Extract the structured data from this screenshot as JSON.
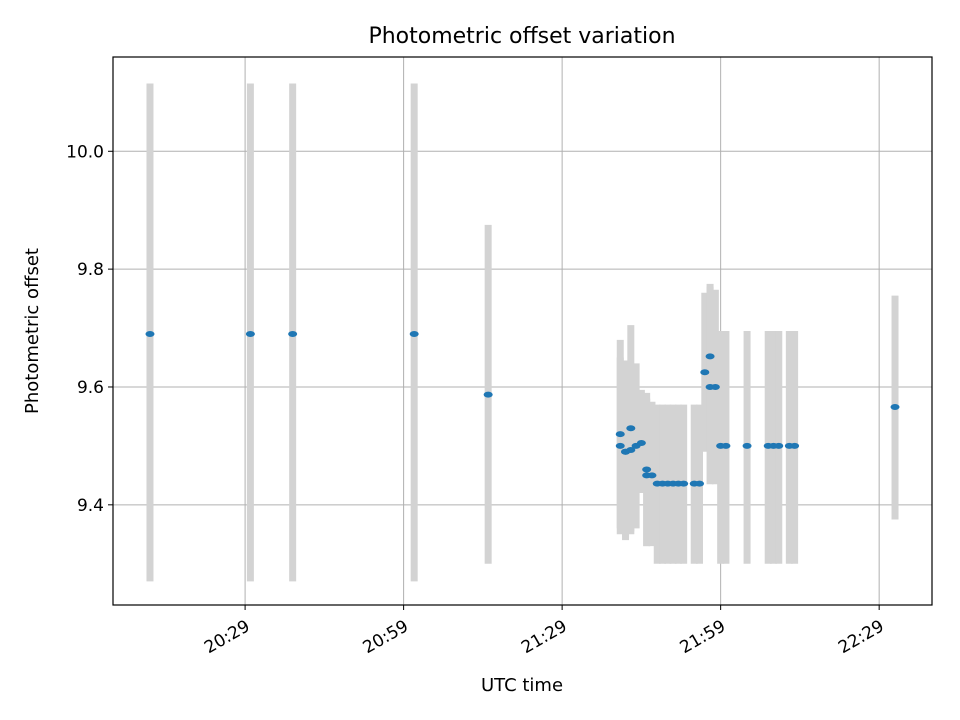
{
  "chart_data": {
    "type": "scatter",
    "title": "Photometric offset variation",
    "xlabel": "UTC time",
    "ylabel": "Photometric offset",
    "grid": true,
    "x_ticks": [
      "20:29",
      "20:59",
      "21:29",
      "21:59",
      "22:29"
    ],
    "y_ticks": [
      "9.4",
      "9.6",
      "9.8",
      "10.0"
    ],
    "xlim": [
      "20:04",
      "22:39"
    ],
    "ylim": [
      9.23,
      10.16
    ],
    "colors": {
      "point": "#1f77b4",
      "errorbar": "#d3d3d3",
      "grid": "#b0b0b0"
    },
    "points": [
      {
        "x": "20:11",
        "y": 9.69,
        "ylo": 9.27,
        "yhi": 10.115
      },
      {
        "x": "20:30",
        "y": 9.69,
        "ylo": 9.27,
        "yhi": 10.115
      },
      {
        "x": "20:38",
        "y": 9.69,
        "ylo": 9.27,
        "yhi": 10.115
      },
      {
        "x": "21:01",
        "y": 9.69,
        "ylo": 9.27,
        "yhi": 10.115
      },
      {
        "x": "21:15",
        "y": 9.587,
        "ylo": 9.3,
        "yhi": 9.875
      },
      {
        "x": "21:40",
        "y": 9.52,
        "ylo": 9.36,
        "yhi": 9.68
      },
      {
        "x": "21:40",
        "y": 9.5,
        "ylo": 9.35,
        "yhi": 9.65
      },
      {
        "x": "21:41",
        "y": 9.49,
        "ylo": 9.345,
        "yhi": 9.645
      },
      {
        "x": "21:41",
        "y": 9.49,
        "ylo": 9.34,
        "yhi": 9.635
      },
      {
        "x": "21:42",
        "y": 9.493,
        "ylo": 9.35,
        "yhi": 9.64
      },
      {
        "x": "21:42",
        "y": 9.53,
        "ylo": 9.355,
        "yhi": 9.705
      },
      {
        "x": "21:43",
        "y": 9.5,
        "ylo": 9.36,
        "yhi": 9.64
      },
      {
        "x": "21:44",
        "y": 9.505,
        "ylo": 9.42,
        "yhi": 9.595
      },
      {
        "x": "21:45",
        "y": 9.46,
        "ylo": 9.33,
        "yhi": 9.59
      },
      {
        "x": "21:45",
        "y": 9.45,
        "ylo": 9.33,
        "yhi": 9.58
      },
      {
        "x": "21:46",
        "y": 9.45,
        "ylo": 9.33,
        "yhi": 9.575
      },
      {
        "x": "21:47",
        "y": 9.436,
        "ylo": 9.3,
        "yhi": 9.57
      },
      {
        "x": "21:48",
        "y": 9.436,
        "ylo": 9.3,
        "yhi": 9.57
      },
      {
        "x": "21:49",
        "y": 9.436,
        "ylo": 9.3,
        "yhi": 9.57
      },
      {
        "x": "21:50",
        "y": 9.436,
        "ylo": 9.3,
        "yhi": 9.57
      },
      {
        "x": "21:51",
        "y": 9.436,
        "ylo": 9.3,
        "yhi": 9.57
      },
      {
        "x": "21:52",
        "y": 9.436,
        "ylo": 9.3,
        "yhi": 9.57
      },
      {
        "x": "21:54",
        "y": 9.436,
        "ylo": 9.3,
        "yhi": 9.57
      },
      {
        "x": "21:55",
        "y": 9.436,
        "ylo": 9.3,
        "yhi": 9.57
      },
      {
        "x": "21:56",
        "y": 9.625,
        "ylo": 9.49,
        "yhi": 9.76
      },
      {
        "x": "21:57",
        "y": 9.652,
        "ylo": 9.53,
        "yhi": 9.775
      },
      {
        "x": "21:57",
        "y": 9.6,
        "ylo": 9.435,
        "yhi": 9.77
      },
      {
        "x": "21:58",
        "y": 9.6,
        "ylo": 9.435,
        "yhi": 9.765
      },
      {
        "x": "21:59",
        "y": 9.5,
        "ylo": 9.3,
        "yhi": 9.695
      },
      {
        "x": "22:00",
        "y": 9.5,
        "ylo": 9.3,
        "yhi": 9.695
      },
      {
        "x": "22:04",
        "y": 9.5,
        "ylo": 9.3,
        "yhi": 9.695
      },
      {
        "x": "22:08",
        "y": 9.5,
        "ylo": 9.3,
        "yhi": 9.695
      },
      {
        "x": "22:09",
        "y": 9.5,
        "ylo": 9.3,
        "yhi": 9.695
      },
      {
        "x": "22:10",
        "y": 9.5,
        "ylo": 9.3,
        "yhi": 9.695
      },
      {
        "x": "22:12",
        "y": 9.5,
        "ylo": 9.3,
        "yhi": 9.695
      },
      {
        "x": "22:13",
        "y": 9.5,
        "ylo": 9.3,
        "yhi": 9.695
      },
      {
        "x": "22:32",
        "y": 9.566,
        "ylo": 9.375,
        "yhi": 9.755
      }
    ]
  }
}
